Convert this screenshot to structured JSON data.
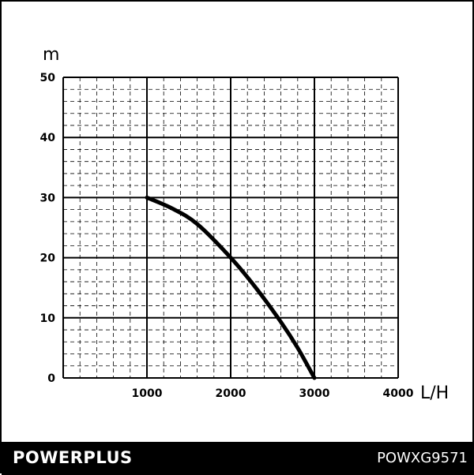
{
  "chart_data": {
    "type": "line",
    "title": "",
    "xlabel": "L/H",
    "ylabel": "m",
    "xlim": [
      0,
      4000
    ],
    "ylim": [
      0,
      50
    ],
    "x_ticks": [
      0,
      1000,
      2000,
      3000,
      4000
    ],
    "y_ticks": [
      0,
      10,
      20,
      30,
      40,
      50
    ],
    "x_tick_labels": [
      "1000",
      "2000",
      "3000",
      "4000"
    ],
    "y_tick_labels": [
      "0",
      "10",
      "20",
      "30",
      "40",
      "50"
    ],
    "grid": true,
    "series": [
      {
        "x": [
          1000,
          1300,
          1600,
          2000,
          2300,
          2600,
          2800,
          3000
        ],
        "y": [
          30,
          28.2,
          25.6,
          20,
          15,
          9.3,
          5,
          0
        ]
      }
    ],
    "colors": {
      "line": "#000000",
      "grid": "#000000",
      "background": "#ffffff"
    }
  },
  "footer": {
    "brand": "POWERPLUS",
    "model": "POWXG9571"
  }
}
